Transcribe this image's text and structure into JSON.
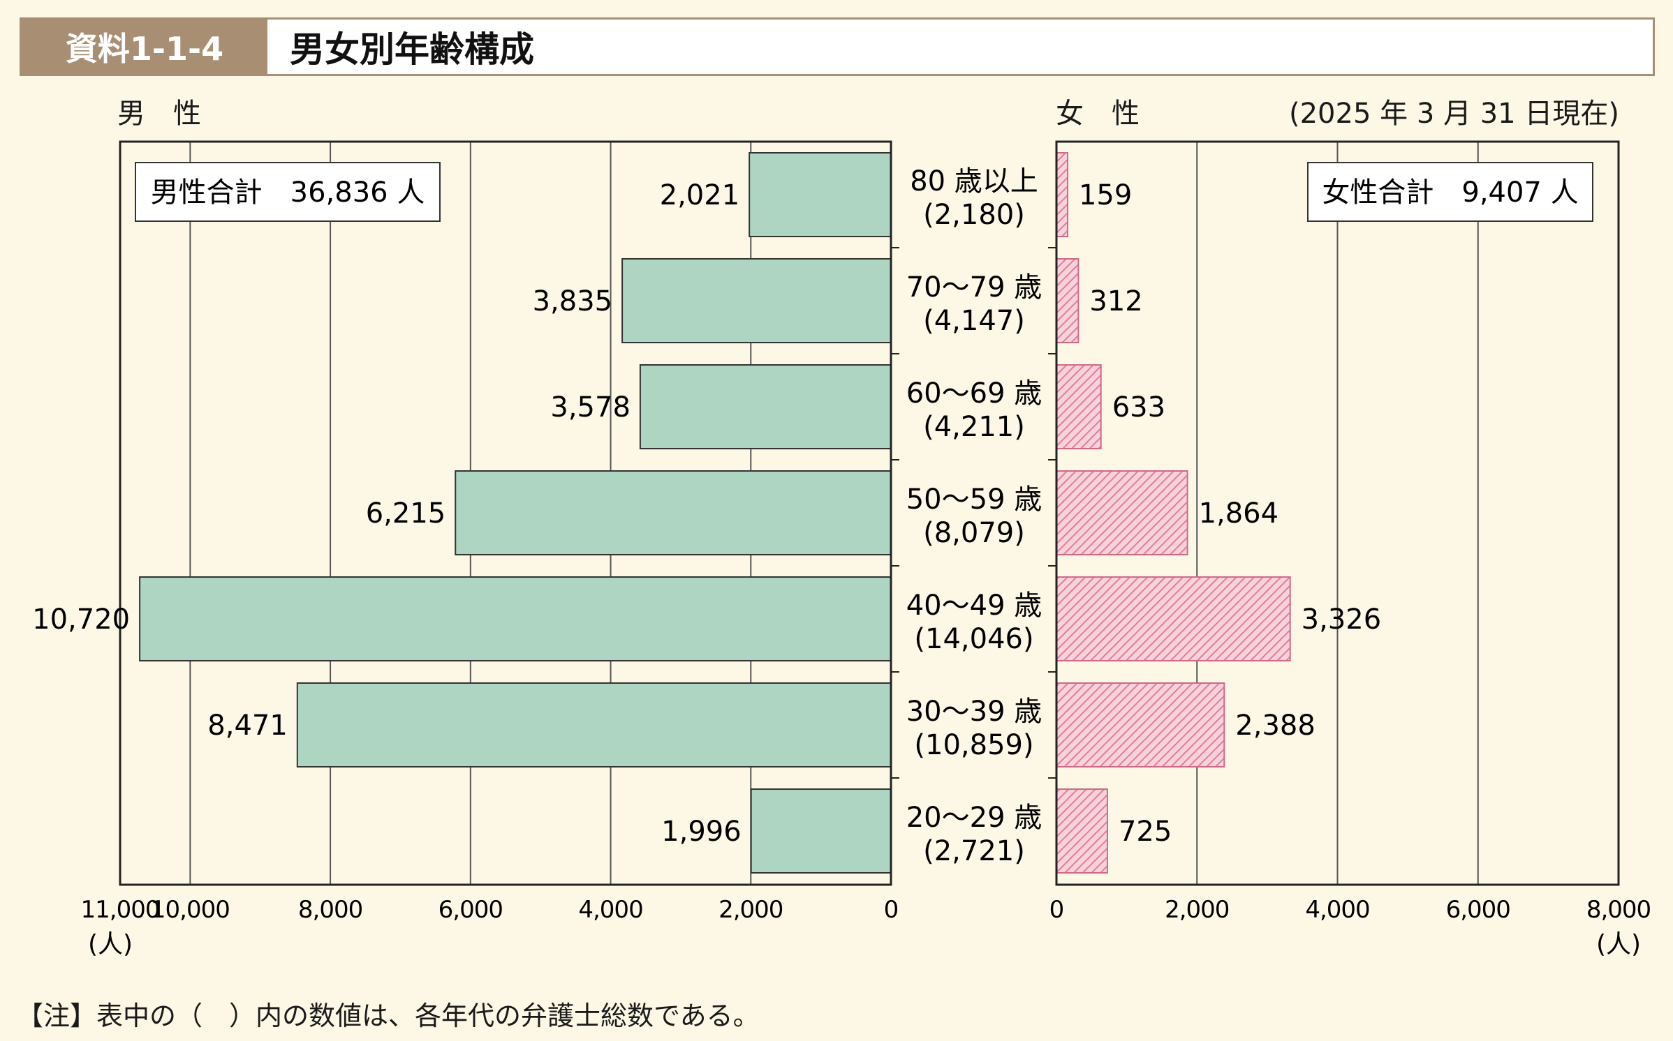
{
  "header": {
    "tag": "資料1-1-4",
    "title": "男女別年齢構成"
  },
  "left_panel": {
    "title": "男　性",
    "total_label": "男性合計　36,836 人"
  },
  "right_panel": {
    "title": "女　性",
    "total_label": "女性合計　9,407 人",
    "as_of": "(2025 年 3 月 31 日現在)"
  },
  "note": "【注】表中の（　）内の数値は、各年代の弁護士総数である。",
  "colors": {
    "male_fill": "#aed4c2",
    "female_fill": "#f9d3dc",
    "female_hatch": "#e37d98",
    "header_brown": "#a88f73",
    "background": "#fdf8e6"
  },
  "chart_data": {
    "type": "bar",
    "orientation": "horizontal",
    "layout": "population-pyramid",
    "unit": "(人)",
    "categories": [
      "80 歳以上",
      "70～79 歳",
      "60～69 歳",
      "50～59 歳",
      "40～49 歳",
      "30～39 歳",
      "20～29 歳"
    ],
    "category_totals": [
      "(2,180)",
      "(4,147)",
      "(4,211)",
      "(8,079)",
      "(14,046)",
      "(10,859)",
      "(2,721)"
    ],
    "series": [
      {
        "name": "男性",
        "values": [
          2021,
          3835,
          3578,
          6215,
          10720,
          8471,
          1996
        ],
        "labels": [
          "2,021",
          "3,835",
          "3,578",
          "6,215",
          "10,720",
          "8,471",
          "1,996"
        ]
      },
      {
        "name": "女性",
        "values": [
          159,
          312,
          633,
          1864,
          3326,
          2388,
          725
        ],
        "labels": [
          "159",
          "312",
          "633",
          "1,864",
          "3,326",
          "2,388",
          "725"
        ]
      }
    ],
    "left_axis": {
      "range": [
        0,
        11000
      ],
      "ticks": [
        0,
        2000,
        4000,
        6000,
        8000,
        10000,
        11000
      ],
      "tick_labels": [
        "0",
        "2,000",
        "4,000",
        "6,000",
        "8,000",
        "10,000",
        "11,000"
      ]
    },
    "right_axis": {
      "range": [
        0,
        8000
      ],
      "ticks": [
        0,
        2000,
        4000,
        6000,
        8000
      ],
      "tick_labels": [
        "0",
        "2,000",
        "4,000",
        "6,000",
        "8,000"
      ]
    },
    "grid": true
  }
}
